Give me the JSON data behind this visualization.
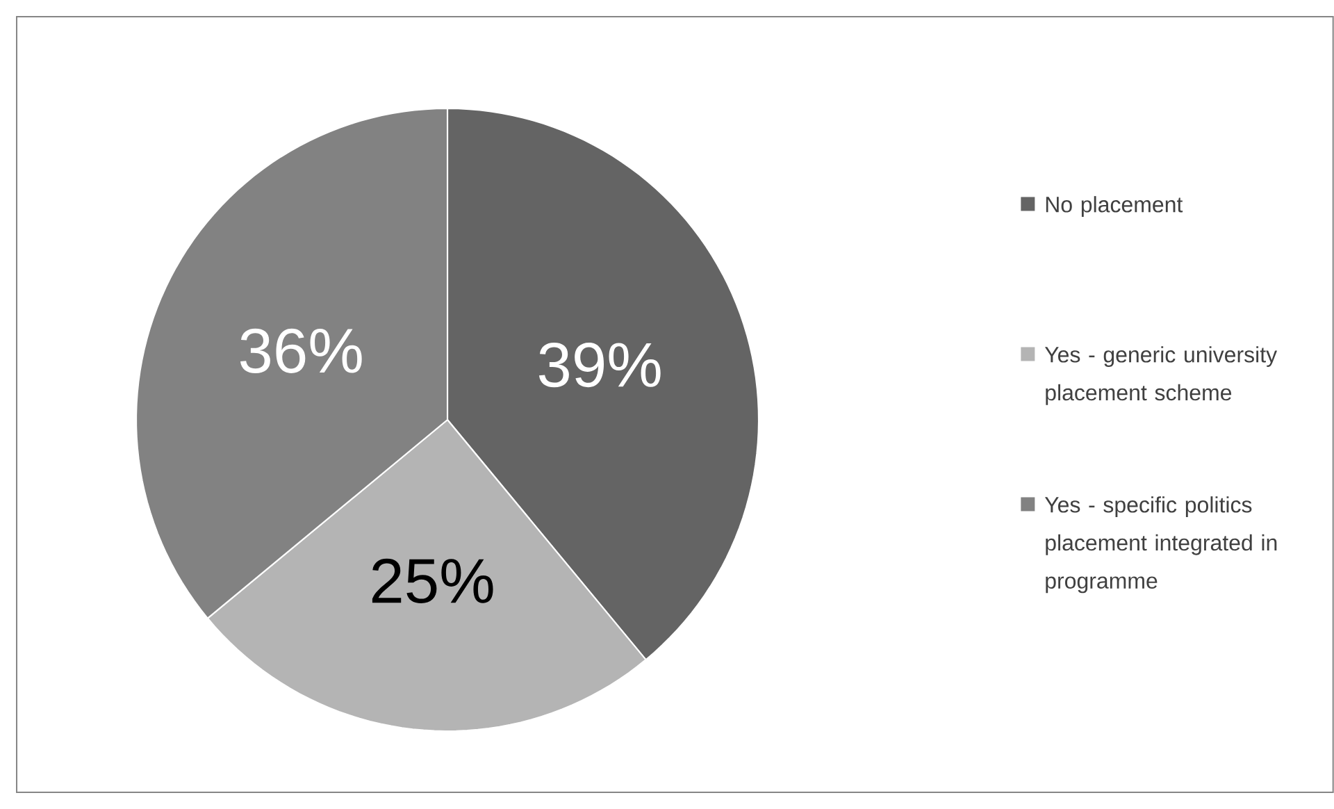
{
  "chart_data": {
    "type": "pie",
    "categories": [
      "No placement",
      "Yes - generic university placement scheme",
      "Yes - specific politics placement integrated in programme"
    ],
    "values": [
      39,
      25,
      36
    ],
    "colors": [
      "#646464",
      "#b4b4b4",
      "#828282"
    ],
    "value_labels": [
      "39%",
      "25%",
      "36%"
    ],
    "legend": "right"
  }
}
